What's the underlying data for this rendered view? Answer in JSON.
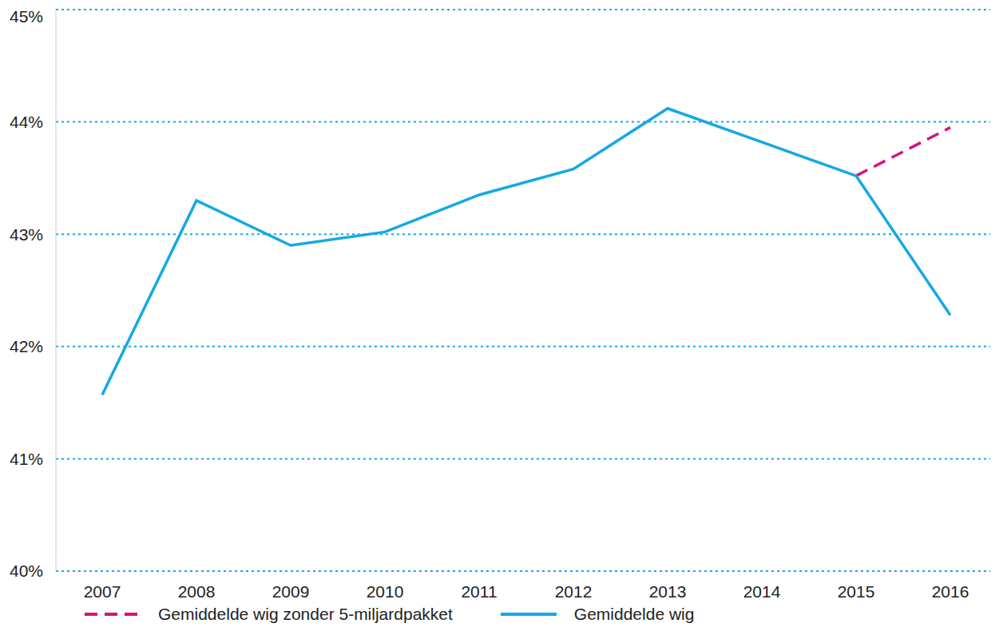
{
  "chart_data": {
    "type": "line",
    "categories": [
      "2007",
      "2008",
      "2009",
      "2010",
      "2011",
      "2012",
      "2013",
      "2014",
      "2015",
      "2016"
    ],
    "series": [
      {
        "name": "Gemiddelde wig zonder 5-miljardpakket",
        "color": "#d9127c",
        "line_style": "dashed",
        "values": [
          null,
          null,
          null,
          null,
          null,
          null,
          null,
          null,
          43.52,
          43.95
        ]
      },
      {
        "name": "Gemiddelde wig",
        "color": "#14a9e3",
        "line_style": "solid",
        "values": [
          41.57,
          43.3,
          42.9,
          43.02,
          43.35,
          43.58,
          44.12,
          43.82,
          43.52,
          42.28
        ]
      }
    ],
    "ylim": [
      40,
      45
    ],
    "yticks": [
      {
        "value": 40,
        "label": "40%"
      },
      {
        "value": 41,
        "label": "41%"
      },
      {
        "value": 42,
        "label": "42%"
      },
      {
        "value": 43,
        "label": "43%"
      },
      {
        "value": 44,
        "label": "44%"
      },
      {
        "value": 45,
        "label": "45%"
      }
    ],
    "grid": true,
    "legend": "bottom"
  }
}
